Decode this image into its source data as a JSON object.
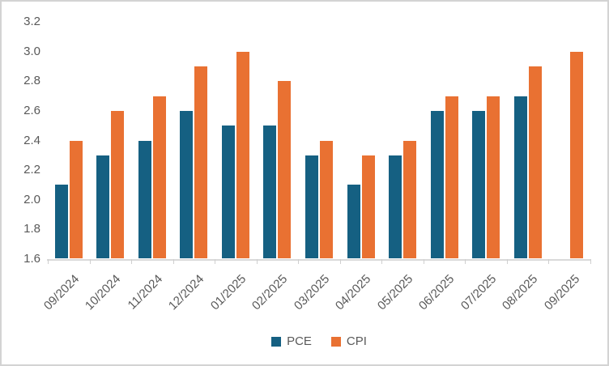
{
  "chart": {
    "background": "#FFFFFF",
    "border_color": "#D3D3D3",
    "text_color": "#595959",
    "axis_line_color": "#D9D9D9"
  },
  "chart_data": {
    "type": "bar",
    "title": "",
    "xlabel": "",
    "ylabel": "",
    "categories": [
      "09/2024",
      "10/2024",
      "11/2024",
      "12/2024",
      "01/2025",
      "02/2025",
      "03/2025",
      "04/2025",
      "05/2025",
      "06/2025",
      "07/2025",
      "08/2025",
      "09/2025"
    ],
    "series": [
      {
        "name": "PCE",
        "color": "#156082",
        "values": [
          2.1,
          2.3,
          2.4,
          2.6,
          2.5,
          2.5,
          2.3,
          2.1,
          2.3,
          2.6,
          2.6,
          2.7,
          null
        ]
      },
      {
        "name": "CPI",
        "color": "#E97132",
        "values": [
          2.4,
          2.6,
          2.7,
          2.9,
          3.0,
          2.8,
          2.4,
          2.3,
          2.4,
          2.7,
          2.7,
          2.9,
          3.0
        ]
      }
    ],
    "ylim": [
      1.6,
      3.2
    ],
    "yticks": [
      "1.6",
      "1.8",
      "2.0",
      "2.2",
      "2.4",
      "2.6",
      "2.8",
      "3.0",
      "3.2"
    ],
    "grid": false,
    "legend_position": "bottom",
    "x_label_rotation": 45
  }
}
